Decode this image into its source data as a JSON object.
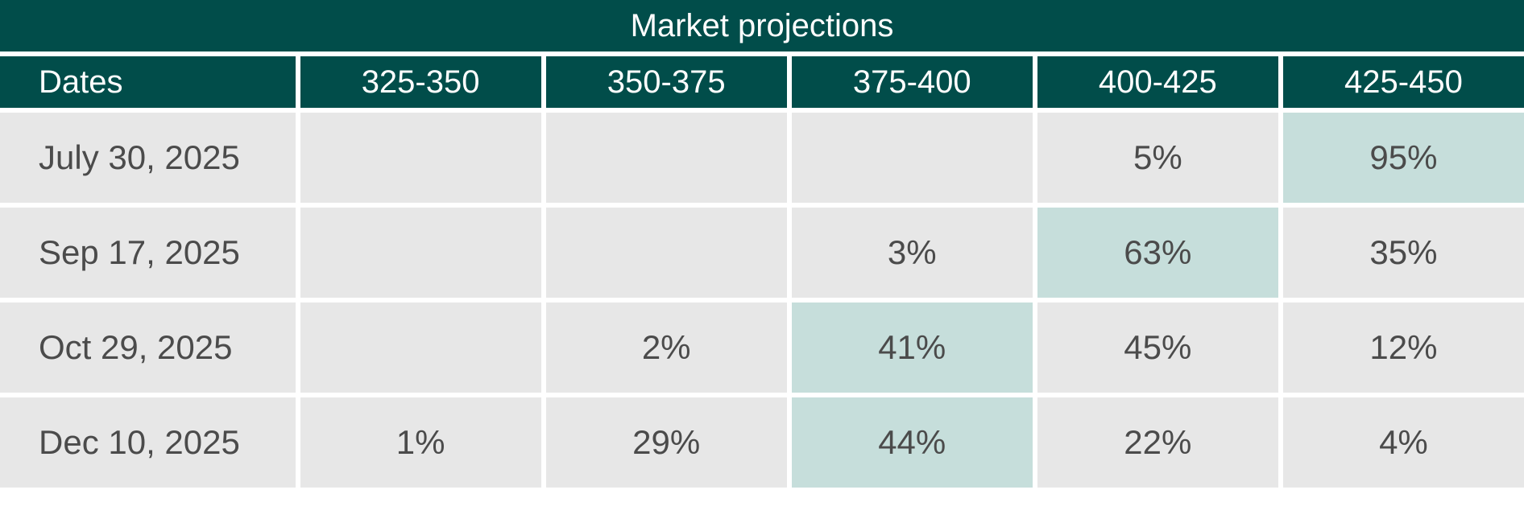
{
  "colors": {
    "header_bg": "#014d4a",
    "cell_bg": "#e7e7e7",
    "highlight_bg": "#c6dedb",
    "text": "#4b4b4b"
  },
  "chart_data": {
    "type": "table",
    "title": "Market projections",
    "columns": [
      "Dates",
      "325-350",
      "350-375",
      "375-400",
      "400-425",
      "425-450"
    ],
    "rows": [
      {
        "date": "July 30, 2025",
        "cells": [
          "",
          "",
          "",
          "5%",
          "95%"
        ],
        "highlight": 4
      },
      {
        "date": "Sep 17, 2025",
        "cells": [
          "",
          "",
          "3%",
          "63%",
          "35%"
        ],
        "highlight": 3
      },
      {
        "date": "Oct 29, 2025",
        "cells": [
          "",
          "2%",
          "41%",
          "45%",
          "12%"
        ],
        "highlight": 2
      },
      {
        "date": "Dec 10, 2025",
        "cells": [
          "1%",
          "29%",
          "44%",
          "22%",
          "4%"
        ],
        "highlight": 2
      }
    ]
  }
}
